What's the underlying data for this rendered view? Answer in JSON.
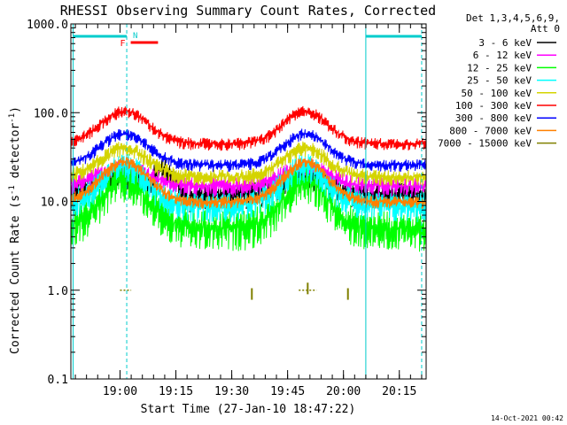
{
  "chart_data": {
    "type": "line",
    "title": "RHESSI Observing Summary Count Rates, Corrected",
    "ylabel_parts": [
      "Corrected Count Rate (s",
      "-1",
      " detector",
      "-1",
      ")"
    ],
    "xlabel": "Start Time (27-Jan-10 18:47:22)",
    "footer": "14-Oct-2021 00:42",
    "y_scale": "log",
    "ylim": [
      0.1,
      1000
    ],
    "xlim_minutes": [
      18.78,
      20.37
    ],
    "yticks": [
      0.1,
      1.0,
      10.0,
      100.0,
      1000.0
    ],
    "ytick_labels": [
      "0.1",
      "1.0",
      "10.0",
      "100.0",
      "1000.0"
    ],
    "xticks": [
      19.0,
      19.25,
      19.5,
      19.75,
      20.0,
      20.25
    ],
    "xtick_labels": [
      "19:00",
      "19:15",
      "19:30",
      "19:45",
      "20:00",
      "20:15"
    ],
    "legend": {
      "placement": "top-right",
      "header_lines": [
        "Det 1,3,4,5,6,9,",
        "Att 0"
      ]
    },
    "series": [
      {
        "name": "3 - 6 keV",
        "color": "#000000",
        "base": 20,
        "night": 12,
        "scatter": 0.35,
        "bump": true
      },
      {
        "name": "6 - 12 keV",
        "color": "#ff00ff",
        "base": 25,
        "night": 15,
        "scatter": 0.25
      },
      {
        "name": "12 - 25 keV",
        "color": "#00ff00",
        "base": 17,
        "night": 5,
        "scatter": 0.6
      },
      {
        "name": "25 - 50 keV",
        "color": "#00ffff",
        "base": 25,
        "night": 9,
        "scatter": 0.4
      },
      {
        "name": "50 - 100 keV",
        "color": "#d4d400",
        "base": 40,
        "night": 19,
        "scatter": 0.2
      },
      {
        "name": "100 - 300 keV",
        "color": "#ff0000",
        "base": 105,
        "night": 45,
        "scatter": 0.15
      },
      {
        "name": "300 - 800 keV",
        "color": "#0000ff",
        "base": 58,
        "night": 26,
        "scatter": 0.15
      },
      {
        "name": "800 - 7000 keV",
        "color": "#ff8000",
        "base": 28,
        "night": 10,
        "scatter": 0.15
      },
      {
        "name": "7000 - 15000 keV",
        "color": "#808000",
        "base": 1.0,
        "night": null,
        "scatter": 0
      }
    ],
    "orbit_bumps": [
      {
        "center": 19.02,
        "width": 0.15
      },
      {
        "center": 19.83,
        "width": 0.14
      }
    ],
    "saa_intervals": [
      [
        18.79,
        19.03
      ],
      [
        20.1,
        20.35
      ]
    ],
    "flag_bars": [
      {
        "label": "F",
        "start": 19.04,
        "end": 19.17,
        "color": "#ff0000"
      },
      {
        "label": "N",
        "start": 19.03,
        "end": 19.03,
        "color": "#00cccc"
      }
    ],
    "vertical_lines": [
      {
        "x": 18.79,
        "style": "solid"
      },
      {
        "x": 19.03,
        "style": "dashed"
      },
      {
        "x": 20.1,
        "style": "solid"
      },
      {
        "x": 20.35,
        "style": "dashed"
      }
    ],
    "high_energy_markers": [
      {
        "x": 19.59,
        "value": 0.78
      },
      {
        "x": 19.84,
        "value": 0.9
      },
      {
        "x": 20.02,
        "value": 0.78
      }
    ]
  }
}
